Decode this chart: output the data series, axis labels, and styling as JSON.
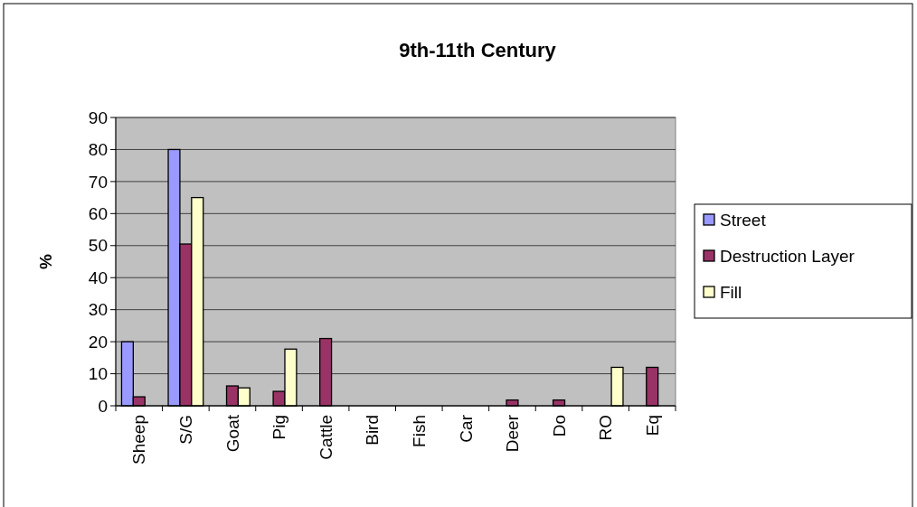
{
  "chart_data": {
    "type": "bar",
    "title": "9th-11th Century",
    "ylabel": "%",
    "categories": [
      "Sheep",
      "S/G",
      "Goat",
      "Pig",
      "Cattle",
      "Bird",
      "Fish",
      "Car",
      "Deer",
      "Do",
      "RO",
      "Eq"
    ],
    "series": [
      {
        "name": "Street",
        "color": "#9999ff",
        "values": [
          20,
          80,
          0,
          0,
          0,
          0,
          0,
          0,
          0,
          0,
          0,
          0
        ]
      },
      {
        "name": "Destruction Layer",
        "color": "#993366",
        "values": [
          2.8,
          50.5,
          6.2,
          4.5,
          21,
          0,
          0,
          0,
          1.8,
          1.8,
          0,
          12
        ]
      },
      {
        "name": "Fill",
        "color": "#ffffcc",
        "values": [
          0,
          65,
          5.6,
          17.7,
          0,
          0,
          0,
          0,
          0,
          0,
          12,
          0
        ]
      }
    ],
    "ylim": [
      0,
      90
    ],
    "yticks": [
      0,
      10,
      20,
      30,
      40,
      50,
      60,
      70,
      80,
      90
    ],
    "grid": "y",
    "legend": "right"
  }
}
